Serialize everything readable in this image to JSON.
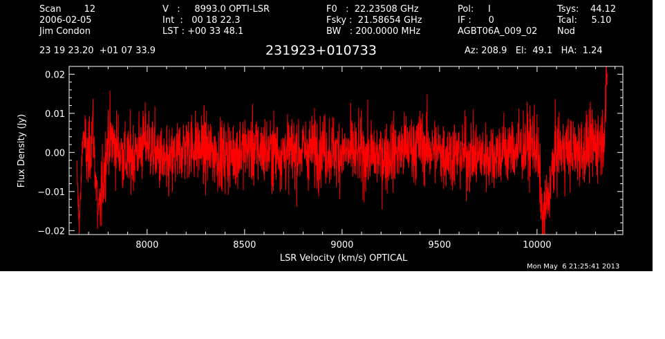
{
  "header": {
    "col1": [
      "Scan        12",
      "2006-02-05",
      "Jim Condon"
    ],
    "col2": [
      "V   :     8993.0 OPTI-LSR",
      "Int  :   00 18 22.3",
      "LST : +00 33 48.1"
    ],
    "col3": [
      "F0   :  22.23508 GHz",
      "Fsky :  21.58654 GHz",
      "BW   : 200.0000 MHz"
    ],
    "col4": [
      "Pol:     I",
      "IF :      0",
      "AGBT06A_009_02"
    ],
    "col5": [
      "Tsys:    44.12",
      "Tcal:     5.10",
      "Nod"
    ],
    "coords": "23 19 23.20  +01 07 33.9",
    "source": "231923+010733",
    "azelha": "Az: 208.9   El:  49.1   HA:  1.24",
    "timestamp": "Mon May  6 21:25:41 2013"
  },
  "colors": {
    "background": "#000000",
    "axes": "#ffffff",
    "trace": "#ff0000",
    "page": "#ffffff"
  },
  "chart_data": {
    "type": "line",
    "title": "231923+010733",
    "xlabel": "LSR Velocity (km/s) OPTICAL",
    "ylabel": "Flux Density (Jy)",
    "xlim": [
      7600,
      10440
    ],
    "ylim": [
      -0.021,
      0.022
    ],
    "x_ticks": [
      8000,
      8500,
      9000,
      9500,
      10000
    ],
    "y_ticks": [
      -0.02,
      -0.01,
      0.0,
      0.01,
      0.02
    ],
    "x_tick_labels": [
      "8000",
      "8500",
      "9000",
      "9500",
      "10000"
    ],
    "y_tick_labels": [
      "−0.02",
      "−0.01",
      "0.00",
      "0.01",
      "0.02"
    ],
    "series": [
      {
        "x_start": 7640,
        "x_end": 10360,
        "noise_rms_jy": 0.0045,
        "values": [
          [
            7640,
            -0.005
          ],
          [
            7650,
            -0.017
          ],
          [
            7655,
            -0.016
          ],
          [
            7660,
            -0.01
          ],
          [
            7670,
            0.005
          ],
          [
            7700,
            -0.003
          ],
          [
            7720,
            0.008
          ],
          [
            7750,
            -0.018
          ],
          [
            7800,
            0.004
          ],
          [
            7900,
            -0.002
          ],
          [
            8000,
            0.003
          ],
          [
            8100,
            -0.004
          ],
          [
            8200,
            0.002
          ],
          [
            8400,
            -0.001
          ],
          [
            8500,
            0.001
          ],
          [
            8700,
            0.0
          ],
          [
            8900,
            0.001
          ],
          [
            9000,
            0.0
          ],
          [
            9200,
            -0.001
          ],
          [
            9400,
            0.002
          ],
          [
            9500,
            0.0
          ],
          [
            9700,
            -0.001
          ],
          [
            9900,
            0.001
          ],
          [
            10000,
            0.002
          ],
          [
            10030,
            -0.019
          ],
          [
            10100,
            0.001
          ],
          [
            10200,
            0.0
          ],
          [
            10300,
            0.002
          ],
          [
            10340,
            0.004
          ],
          [
            10360,
            0.018
          ]
        ]
      }
    ]
  }
}
